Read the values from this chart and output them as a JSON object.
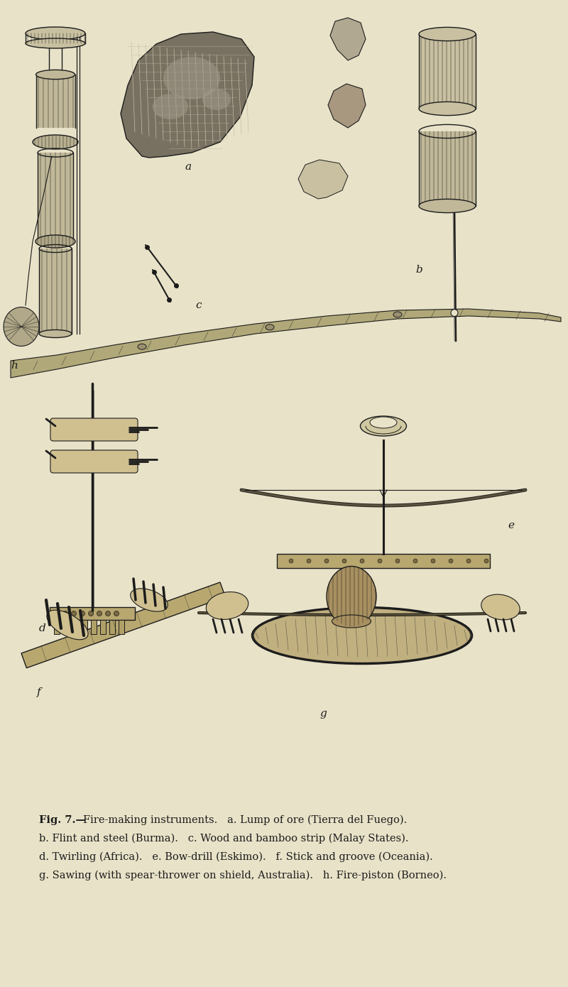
{
  "background_color": "#e8e2c8",
  "fig_width": 8.0,
  "fig_height": 13.9,
  "dpi": 100,
  "caption_line1": "Fig. 7.—Fire-making instruments.   a. Lump of ore (Tierra del Fuego).",
  "caption_line2": "b. Flint and steel (Burma).   c. Wood and bamboo strip (Malay States).",
  "caption_line3": "d. Twirling (Africa).   e. Bow-drill (Eskimo).   f. Stick and groove (Oceania).",
  "caption_line4": "g. Sawing (with spear-thrower on shield, Australia).   h. Fire-piston (Borneo).",
  "caption_fontsize": 10.5,
  "ink_color": "#1c1c1c",
  "label_fontsize": 11,
  "bg_color": "#e8e2c8"
}
